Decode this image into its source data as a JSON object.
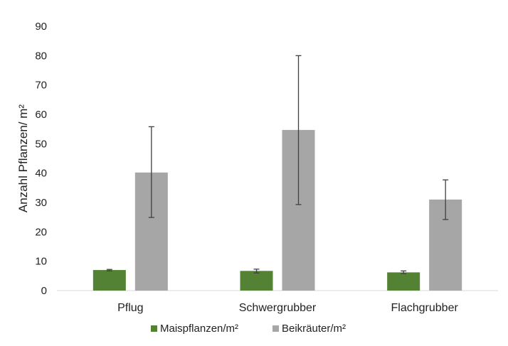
{
  "chart_data": {
    "type": "bar",
    "title": "",
    "xlabel": "",
    "ylabel": "Anzahl Pflanzen/ m²",
    "ylim": [
      0,
      90
    ],
    "yticks": [
      0,
      10,
      20,
      30,
      40,
      50,
      60,
      70,
      80,
      90
    ],
    "grid": false,
    "legend_position": "bottom",
    "categories": [
      "Pflug",
      "Schwergrubber",
      "Flachgrubber"
    ],
    "series": [
      {
        "name": "Maispflanzen/m²",
        "color": "#548235",
        "values": [
          7.0,
          6.7,
          6.2
        ],
        "error_low": [
          6.7,
          6.0,
          5.8
        ],
        "error_high": [
          7.2,
          7.3,
          6.7
        ]
      },
      {
        "name": "Beikräuter/m²",
        "color": "#a6a6a6",
        "values": [
          40.2,
          54.7,
          31.0
        ],
        "error_low": [
          24.9,
          29.3,
          24.2
        ],
        "error_high": [
          55.8,
          80.0,
          37.7
        ]
      }
    ]
  }
}
